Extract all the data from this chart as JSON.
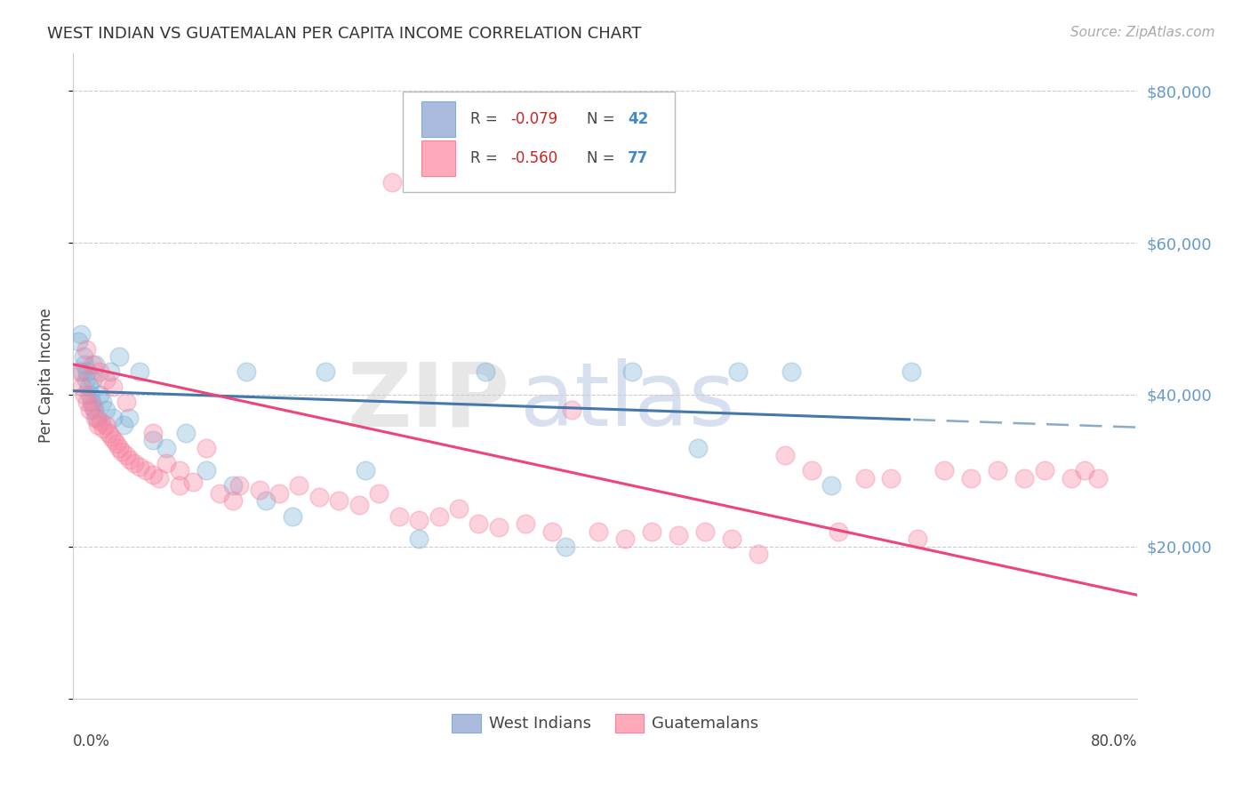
{
  "title": "WEST INDIAN VS GUATEMALAN PER CAPITA INCOME CORRELATION CHART",
  "source": "Source: ZipAtlas.com",
  "ylabel": "Per Capita Income",
  "legend_label1": "West Indians",
  "legend_label2": "Guatemalans",
  "r1": "-0.079",
  "n1": "42",
  "r2": "-0.560",
  "n2": "77",
  "color_blue": "#7BAFD4",
  "color_pink": "#F7819F",
  "background": "#FFFFFF",
  "ylim": [
    0,
    85000
  ],
  "xlim": [
    0.0,
    0.8
  ],
  "yticks": [
    0,
    20000,
    40000,
    60000,
    80000
  ],
  "blue_line_intercept": 40500,
  "blue_line_slope": -6000,
  "blue_line_solid_end": 0.63,
  "pink_line_intercept": 44000,
  "pink_line_slope": -38000,
  "west_indians_x": [
    0.004,
    0.006,
    0.007,
    0.008,
    0.009,
    0.01,
    0.011,
    0.012,
    0.013,
    0.014,
    0.015,
    0.016,
    0.017,
    0.018,
    0.02,
    0.022,
    0.025,
    0.028,
    0.03,
    0.035,
    0.038,
    0.042,
    0.05,
    0.06,
    0.07,
    0.085,
    0.1,
    0.12,
    0.13,
    0.145,
    0.165,
    0.19,
    0.22,
    0.26,
    0.31,
    0.37,
    0.42,
    0.47,
    0.5,
    0.54,
    0.57,
    0.63
  ],
  "west_indians_y": [
    47000,
    48000,
    43000,
    45000,
    44000,
    42000,
    43000,
    41000,
    40000,
    39000,
    42000,
    38000,
    44000,
    37000,
    40000,
    39000,
    38000,
    43000,
    37000,
    45000,
    36000,
    37000,
    43000,
    34000,
    33000,
    35000,
    30000,
    28000,
    43000,
    26000,
    24000,
    43000,
    30000,
    21000,
    43000,
    20000,
    43000,
    33000,
    43000,
    43000,
    28000,
    43000
  ],
  "guatemalans_x": [
    0.005,
    0.007,
    0.009,
    0.011,
    0.013,
    0.015,
    0.017,
    0.019,
    0.021,
    0.023,
    0.025,
    0.027,
    0.029,
    0.031,
    0.033,
    0.035,
    0.037,
    0.04,
    0.043,
    0.046,
    0.05,
    0.055,
    0.06,
    0.065,
    0.07,
    0.08,
    0.09,
    0.1,
    0.11,
    0.125,
    0.14,
    0.155,
    0.17,
    0.185,
    0.2,
    0.215,
    0.23,
    0.245,
    0.26,
    0.275,
    0.29,
    0.305,
    0.32,
    0.34,
    0.36,
    0.375,
    0.395,
    0.415,
    0.435,
    0.455,
    0.475,
    0.495,
    0.515,
    0.535,
    0.555,
    0.575,
    0.595,
    0.615,
    0.635,
    0.655,
    0.675,
    0.695,
    0.715,
    0.73,
    0.75,
    0.76,
    0.77,
    0.01,
    0.015,
    0.02,
    0.025,
    0.03,
    0.04,
    0.06,
    0.08,
    0.12,
    0.24
  ],
  "guatemalans_y": [
    43000,
    41000,
    40000,
    39000,
    38000,
    38500,
    37000,
    36000,
    36500,
    35500,
    36000,
    35000,
    34500,
    34000,
    33500,
    33000,
    32500,
    32000,
    31500,
    31000,
    30500,
    30000,
    29500,
    29000,
    31000,
    28000,
    28500,
    33000,
    27000,
    28000,
    27500,
    27000,
    28000,
    26500,
    26000,
    25500,
    27000,
    24000,
    23500,
    24000,
    25000,
    23000,
    22500,
    23000,
    22000,
    38000,
    22000,
    21000,
    22000,
    21500,
    22000,
    21000,
    19000,
    32000,
    30000,
    22000,
    29000,
    29000,
    21000,
    30000,
    29000,
    30000,
    29000,
    30000,
    29000,
    30000,
    29000,
    46000,
    44000,
    43000,
    42000,
    41000,
    39000,
    35000,
    30000,
    26000,
    68000
  ]
}
